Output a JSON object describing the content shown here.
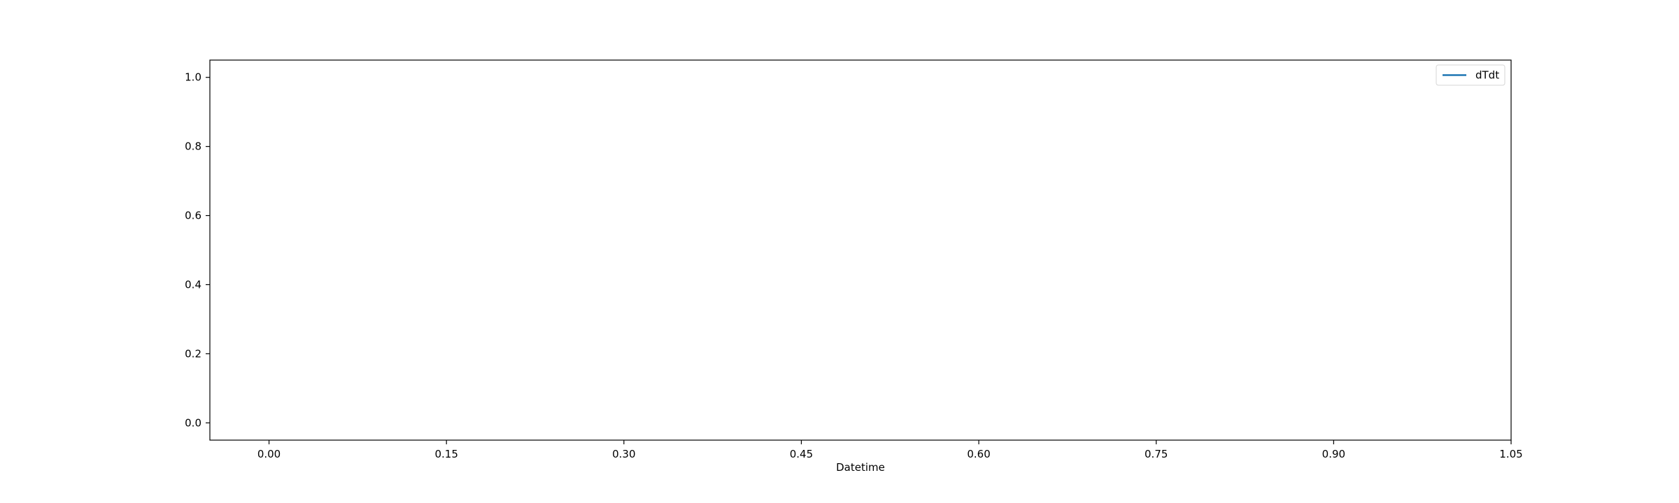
{
  "chart_data": {
    "type": "line",
    "title": "",
    "xlabel": "Datetime",
    "ylabel": "",
    "xlim": [
      -0.05,
      1.05
    ],
    "ylim": [
      -0.05,
      1.05
    ],
    "xticks": [
      0.0,
      0.15,
      0.3,
      0.45,
      0.6,
      0.75,
      0.9,
      1.05
    ],
    "xtick_labels": [
      "0.00",
      "0.15",
      "0.30",
      "0.45",
      "0.60",
      "0.75",
      "0.90",
      "1.05"
    ],
    "yticks": [
      0.0,
      0.2,
      0.4,
      0.6,
      0.8,
      1.0
    ],
    "ytick_labels": [
      "0.0",
      "0.2",
      "0.4",
      "0.6",
      "0.8",
      "1.0"
    ],
    "grid": false,
    "legend_position": "top-right",
    "series": [
      {
        "name": "dTdt",
        "color": "#1f77b4",
        "x": [],
        "y": []
      }
    ]
  }
}
